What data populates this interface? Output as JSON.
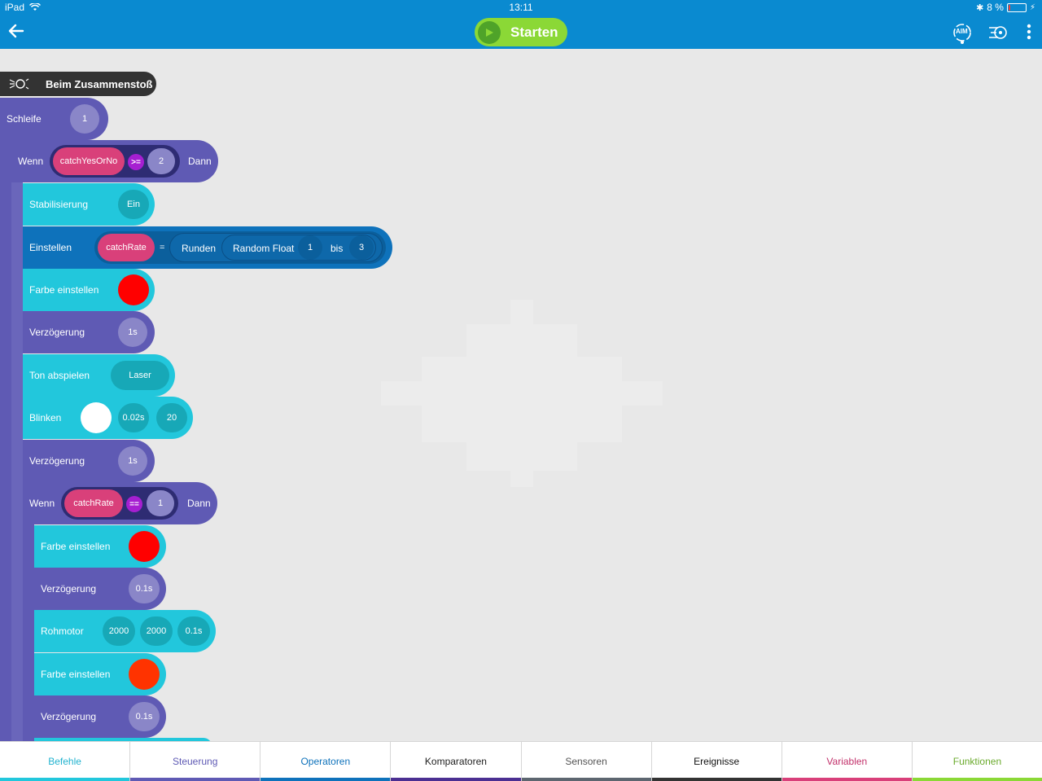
{
  "status": {
    "device": "iPad",
    "time": "13:11",
    "battery": "8 %",
    "battery_level": 0.08
  },
  "header": {
    "start_label": "Starten",
    "aim_label": "AIM"
  },
  "event": {
    "label": "Beim Zusammenstoß"
  },
  "blocks": {
    "loop": {
      "label": "Schleife",
      "value": "1"
    },
    "if1": {
      "label": "Wenn",
      "var": "catchYesOrNo",
      "op": ">=",
      "value": "2",
      "then": "Dann"
    },
    "stabil": {
      "label": "Stabilisierung",
      "value": "Ein"
    },
    "set": {
      "label": "Einstellen",
      "var": "catchRate",
      "eq": "=",
      "round": "Runden",
      "random": "Random Float",
      "from": "1",
      "to_label": "bis",
      "to": "3"
    },
    "color1": {
      "label": "Farbe einstellen",
      "color": "#ff0000"
    },
    "delay1": {
      "label": "Verzögerung",
      "value": "1s"
    },
    "sound": {
      "label": "Ton abspielen",
      "value": "Laser"
    },
    "blink": {
      "label": "Blinken",
      "color": "#ffffff",
      "duration": "0.02s",
      "count": "20"
    },
    "delay2": {
      "label": "Verzögerung",
      "value": "1s"
    },
    "if2": {
      "label": "Wenn",
      "var": "catchRate",
      "op": "==",
      "value": "1",
      "then": "Dann"
    },
    "color2": {
      "label": "Farbe einstellen",
      "color": "#ff0000"
    },
    "delay3": {
      "label": "Verzögerung",
      "value": "0.1s"
    },
    "motor": {
      "label": "Rohmotor",
      "left": "2000",
      "right": "2000",
      "time": "0.1s"
    },
    "color3": {
      "label": "Farbe einstellen",
      "color": "#ff3300"
    },
    "delay4": {
      "label": "Verzögerung",
      "value": "0.1s"
    }
  },
  "tabs": [
    {
      "label": "Befehle",
      "text_color": "#22b3cf",
      "bar_color": "#22c7dc"
    },
    {
      "label": "Steuerung",
      "text_color": "#5f5ab4",
      "bar_color": "#5f5ab4"
    },
    {
      "label": "Operatoren",
      "text_color": "#0e72bb",
      "bar_color": "#0e72bb"
    },
    {
      "label": "Komparatoren",
      "text_color": "#222222",
      "bar_color": "#4b2f92"
    },
    {
      "label": "Sensoren",
      "text_color": "#555555",
      "bar_color": "#5d6670"
    },
    {
      "label": "Ereignisse",
      "text_color": "#111111",
      "bar_color": "#333333"
    },
    {
      "label": "Variablen",
      "text_color": "#c2306a",
      "bar_color": "#d9407a"
    },
    {
      "label": "Funktionen",
      "text_color": "#6aaa2c",
      "bar_color": "#8bd836"
    }
  ]
}
